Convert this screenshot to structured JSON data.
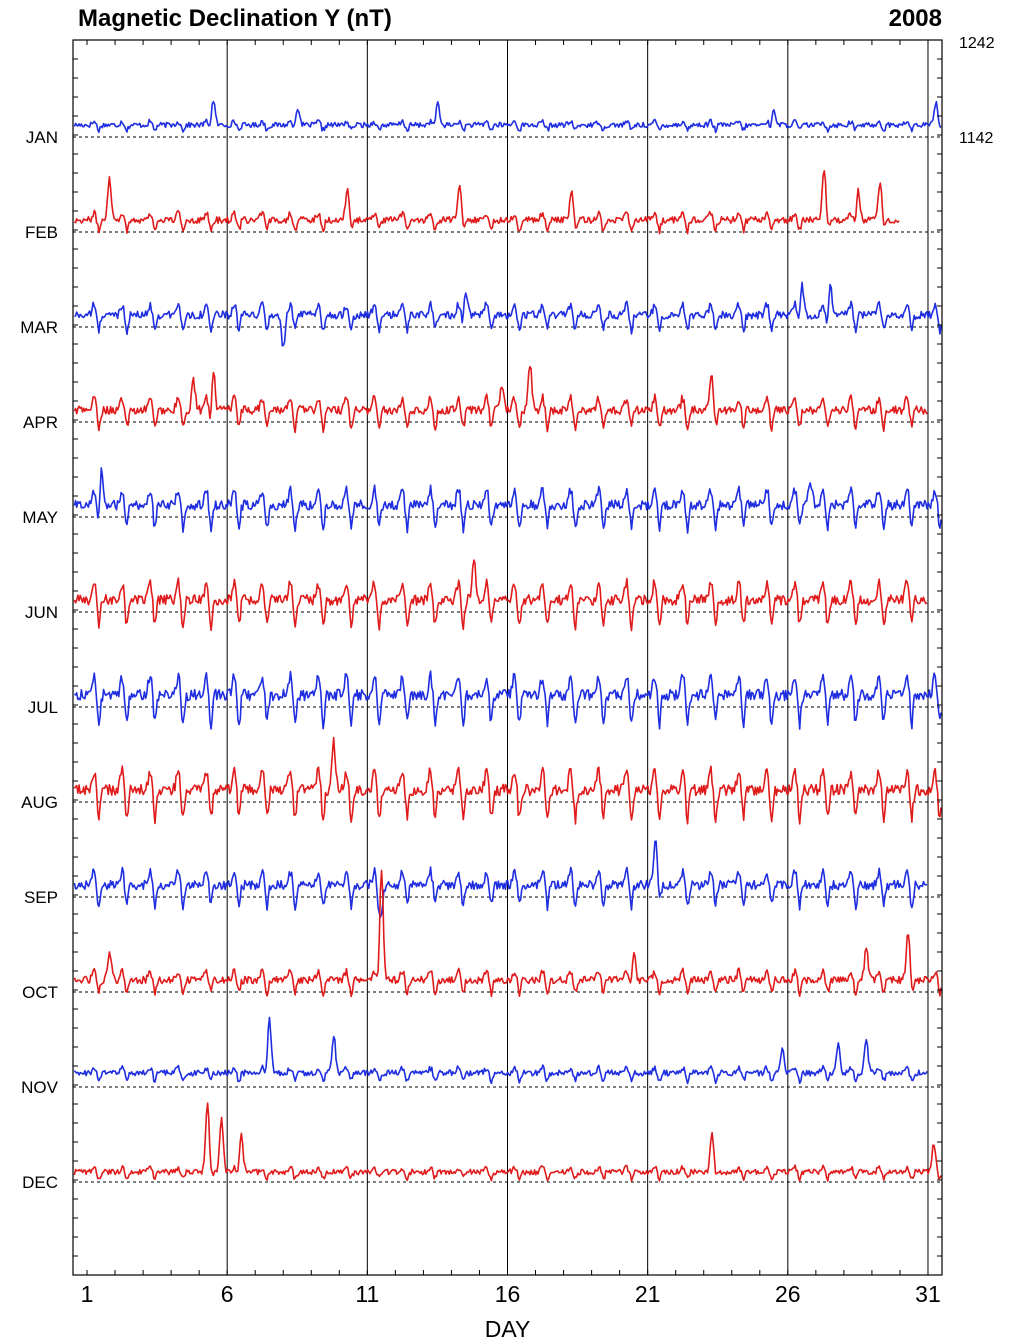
{
  "title": "Magnetic Declination Y (nT)",
  "year": "2008",
  "chart_data": {
    "type": "line",
    "title": "Magnetic Declination Y (nT)",
    "subtitle": "2008",
    "xlabel": "DAY",
    "x_ticks": [
      "1",
      "6",
      "11",
      "16",
      "21",
      "26",
      "31"
    ],
    "x_tick_values": [
      1,
      6,
      11,
      16,
      21,
      26,
      31
    ],
    "xlim": [
      0.5,
      31.5
    ],
    "y_scale_labels": [
      "1242",
      "1142"
    ],
    "y_scale_values": [
      1242,
      1142
    ],
    "baseline_nT": 1142,
    "scale_step_nT": 100,
    "grid": "vertical lines at days 6, 11, 16, 21, 26, 31; dashed baseline per month",
    "colors": {
      "blue": "#1f2ee0",
      "red": "#e01b1b"
    },
    "series": [
      {
        "name": "JAN",
        "color": "blue",
        "days": 31,
        "amp": 4,
        "spikes": [
          [
            5.5,
            28
          ],
          [
            8.5,
            20
          ],
          [
            13.5,
            25
          ],
          [
            25.5,
            18
          ],
          [
            31.3,
            22
          ]
        ]
      },
      {
        "name": "FEB",
        "color": "red",
        "days": 29,
        "amp": 8,
        "spikes": [
          [
            1.8,
            45
          ],
          [
            10.3,
            25
          ],
          [
            14.3,
            30
          ],
          [
            18.3,
            25
          ],
          [
            27.3,
            50
          ],
          [
            28.5,
            35
          ],
          [
            29.3,
            35
          ]
        ]
      },
      {
        "name": "MAR",
        "color": "blue",
        "days": 31,
        "amp": 12,
        "spikes": [
          [
            8,
            -35
          ],
          [
            14.5,
            30
          ],
          [
            26.5,
            35
          ],
          [
            27.5,
            35
          ]
        ]
      },
      {
        "name": "APR",
        "color": "red",
        "days": 30,
        "amp": 14,
        "spikes": [
          [
            4.8,
            30
          ],
          [
            5.5,
            45
          ],
          [
            15.8,
            25
          ],
          [
            16.8,
            50
          ],
          [
            23.3,
            25
          ]
        ]
      },
      {
        "name": "MAY",
        "color": "blue",
        "days": 31,
        "amp": 18,
        "spikes": [
          [
            1.5,
            40
          ],
          [
            26.8,
            25
          ]
        ]
      },
      {
        "name": "JUN",
        "color": "red",
        "days": 30,
        "amp": 20,
        "spikes": [
          [
            14.8,
            45
          ]
        ]
      },
      {
        "name": "JUL",
        "color": "blue",
        "days": 31,
        "amp": 22,
        "spikes": []
      },
      {
        "name": "AUG",
        "color": "red",
        "days": 31,
        "amp": 22,
        "spikes": [
          [
            9.8,
            50
          ]
        ]
      },
      {
        "name": "SEP",
        "color": "blue",
        "days": 30,
        "amp": 16,
        "spikes": [
          [
            11.5,
            -25
          ],
          [
            21.3,
            40
          ]
        ]
      },
      {
        "name": "OCT",
        "color": "red",
        "days": 31,
        "amp": 10,
        "spikes": [
          [
            1.8,
            30
          ],
          [
            11.5,
            120
          ],
          [
            20.5,
            30
          ],
          [
            28.8,
            35
          ],
          [
            30.3,
            45
          ]
        ]
      },
      {
        "name": "NOV",
        "color": "blue",
        "days": 30,
        "amp": 6,
        "spikes": [
          [
            7.5,
            60
          ],
          [
            9.8,
            40
          ],
          [
            25.8,
            25
          ],
          [
            27.8,
            30
          ],
          [
            28.8,
            35
          ]
        ]
      },
      {
        "name": "DEC",
        "color": "red",
        "days": 31,
        "amp": 5,
        "spikes": [
          [
            5.3,
            70
          ],
          [
            5.8,
            55
          ],
          [
            6.5,
            40
          ],
          [
            23.3,
            40
          ],
          [
            31.2,
            25
          ]
        ]
      }
    ]
  }
}
